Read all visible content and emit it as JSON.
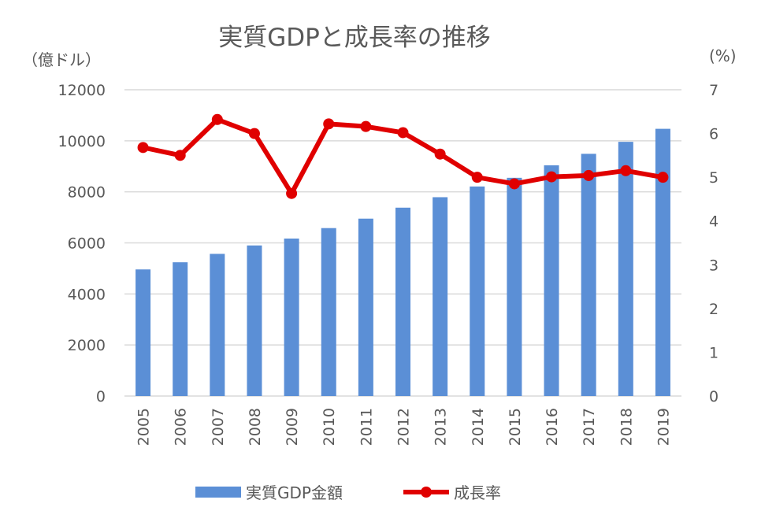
{
  "chart_data": {
    "type": "bar+line",
    "title": "実質GDPと成長率の推移",
    "ylabel_left": "（億ドル）",
    "ylabel_right": "(%)",
    "categories": [
      "2005",
      "2006",
      "2007",
      "2008",
      "2009",
      "2010",
      "2011",
      "2012",
      "2013",
      "2014",
      "2015",
      "2016",
      "2017",
      "2018",
      "2019"
    ],
    "ylim_left": [
      0,
      12000
    ],
    "yticks_left": [
      "0",
      "2000",
      "4000",
      "6000",
      "8000",
      "10000",
      "12000"
    ],
    "ylim_right": [
      0,
      7
    ],
    "yticks_right": [
      "0",
      "1",
      "2",
      "3",
      "4",
      "5",
      "6",
      "7"
    ],
    "grid": true,
    "legend_position": "bottom",
    "series": [
      {
        "name": "実質GDP金額",
        "type": "bar",
        "axis": "left",
        "color": "#5B8FD6",
        "values": [
          4960,
          5240,
          5570,
          5900,
          6170,
          6580,
          6950,
          7380,
          7790,
          8210,
          8550,
          9040,
          9490,
          9960,
          10470
        ]
      },
      {
        "name": "成長率",
        "type": "line",
        "axis": "right",
        "color": "#E00000",
        "values": [
          5.68,
          5.5,
          6.32,
          6.0,
          4.63,
          6.22,
          6.16,
          6.02,
          5.53,
          5.0,
          4.85,
          5.01,
          5.04,
          5.15,
          5.0
        ]
      }
    ]
  }
}
